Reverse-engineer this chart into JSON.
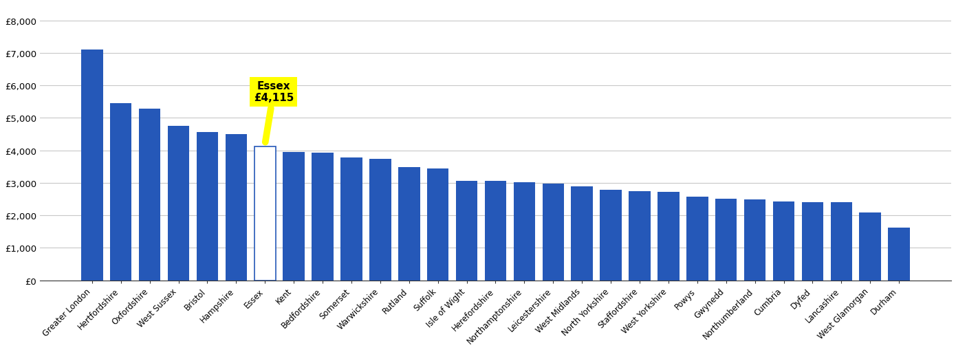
{
  "categories": [
    "Greater London",
    "Hertfordshire",
    "Oxfordshire",
    "West Sussex",
    "Bristol",
    "Hampshire",
    "Essex",
    "Kent",
    "Bedfordshire",
    "Somerset",
    "Warwickshire",
    "Rutland",
    "Suffolk",
    "Isle of Wight",
    "Herefordshire",
    "Northamptonshire",
    "Leicestershire",
    "West Midlands",
    "North Yorkshire",
    "Staffordshire",
    "West Yorkshire",
    "Powys",
    "Gwynedd",
    "Northumberland",
    "Cumbria",
    "Dyfed",
    "Lancashire",
    "West Glamorgan",
    "Durham"
  ],
  "values": [
    7100,
    5450,
    5280,
    4750,
    4560,
    4500,
    4115,
    3950,
    3930,
    3770,
    3730,
    3490,
    3440,
    3070,
    3060,
    3010,
    2980,
    2890,
    2790,
    2740,
    2720,
    2570,
    2500,
    2490,
    2430,
    2410,
    2400,
    2080,
    1630
  ],
  "essex_index": 6,
  "essex_label": "Essex\n£4,115",
  "bar_color": "#2558b8",
  "essex_bar_facecolor": "#ffffff",
  "essex_bar_edgecolor": "#2558b8",
  "annotation_bg": "#ffff00",
  "annotation_text_color": "#000000",
  "ylim": [
    0,
    8500
  ],
  "yticks": [
    0,
    1000,
    2000,
    3000,
    4000,
    5000,
    6000,
    7000,
    8000
  ],
  "background_color": "#ffffff",
  "grid_color": "#c8c8c8",
  "bottom_spine_color": "#333333"
}
